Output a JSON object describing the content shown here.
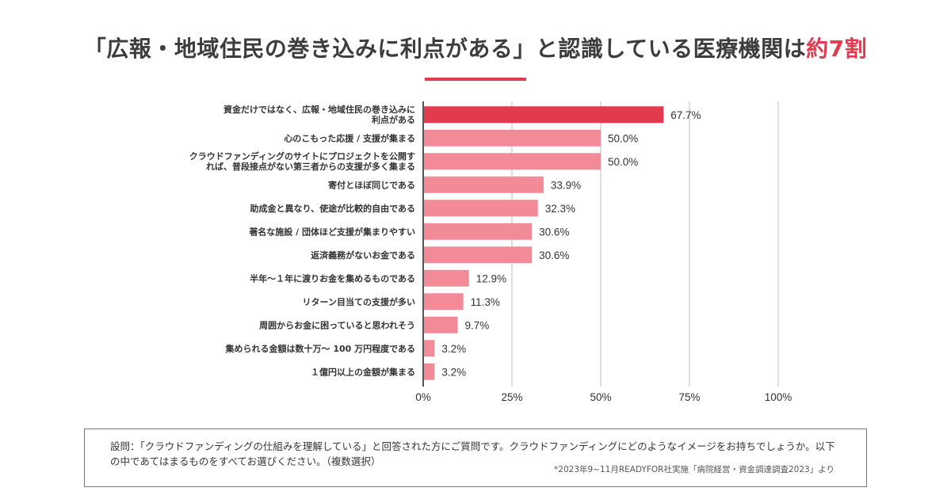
{
  "header": {
    "title_main": "「広報・地域住民の巻き込みに利点がある」と認識している医療機関は",
    "title_highlight": "約7割"
  },
  "colors": {
    "highlight": "#e23a4e",
    "bar": "#f28a98",
    "axis": "#555555",
    "grid": "#c8c8c8"
  },
  "chart_data": {
    "type": "bar",
    "orientation": "horizontal",
    "title": "「広報・地域住民の巻き込みに利点がある」と認識している医療機関は約7割",
    "categories": [
      "資金だけではなく、広報・地域住民の巻き込みに利点がある",
      "心のこもった応援 / 支援が集まる",
      "クラウドファンディングのサイトにプロジェクトを公開すれば、普段接点がない第三者からの支援が多く集まる",
      "寄付とほぼ同じである",
      "助成金と異なり、使途が比較的自由である",
      "著名な施設 / 団体ほど支援が集まりやすい",
      "返済義務がないお金である",
      "半年～１年に渡りお金を集めるものである",
      "リターン目当ての支援が多い",
      "周囲からお金に困っていると思われそう",
      "集められる金額は数十万～ 100 万円程度である",
      "１億円以上の金額が集まる"
    ],
    "category_lines": [
      [
        "資金だけではなく、広報・地域住民の巻き込みに",
        "利点がある"
      ],
      [
        "心のこもった応援 / 支援が集まる"
      ],
      [
        "クラウドファンディングのサイトにプロジェクトを公開す",
        "れば、普段接点がない第三者からの支援が多く集まる"
      ],
      [
        "寄付とほぼ同じである"
      ],
      [
        "助成金と異なり、使途が比較的自由である"
      ],
      [
        "著名な施設 / 団体ほど支援が集まりやすい"
      ],
      [
        "返済義務がないお金である"
      ],
      [
        "半年～１年に渡りお金を集めるものである"
      ],
      [
        "リターン目当ての支援が多い"
      ],
      [
        "周囲からお金に困っていると思われそう"
      ],
      [
        "集められる金額は数十万～ 100 万円程度である"
      ],
      [
        "１億円以上の金額が集まる"
      ]
    ],
    "values": [
      67.7,
      50.0,
      50.0,
      33.9,
      32.3,
      30.6,
      30.6,
      12.9,
      11.3,
      9.7,
      3.2,
      3.2
    ],
    "value_labels": [
      "67.7%",
      "50.0%",
      "50.0%",
      "33.9%",
      "32.3%",
      "30.6%",
      "30.6%",
      "12.9%",
      "11.3%",
      "9.7%",
      "3.2%",
      "3.2%"
    ],
    "highlight_index": 0,
    "xlim": [
      0,
      100
    ],
    "xticks": [
      0,
      25,
      50,
      75,
      100
    ],
    "xtick_labels": [
      "0%",
      "25%",
      "50%",
      "75%",
      "100%"
    ],
    "grid": true,
    "xlabel": "",
    "ylabel": ""
  },
  "footnote": {
    "text": "設問：「クラウドファンディングの仕組みを理解している」と回答された方にご質問です。クラウドファンディングにどのようなイメージをお持ちでしょうか。以下の中であてはまるものをすべてお選びください。（複数選択）",
    "source": "*2023年9~11月READYFOR社実施「病院経営・資金調達調査2023」より"
  }
}
